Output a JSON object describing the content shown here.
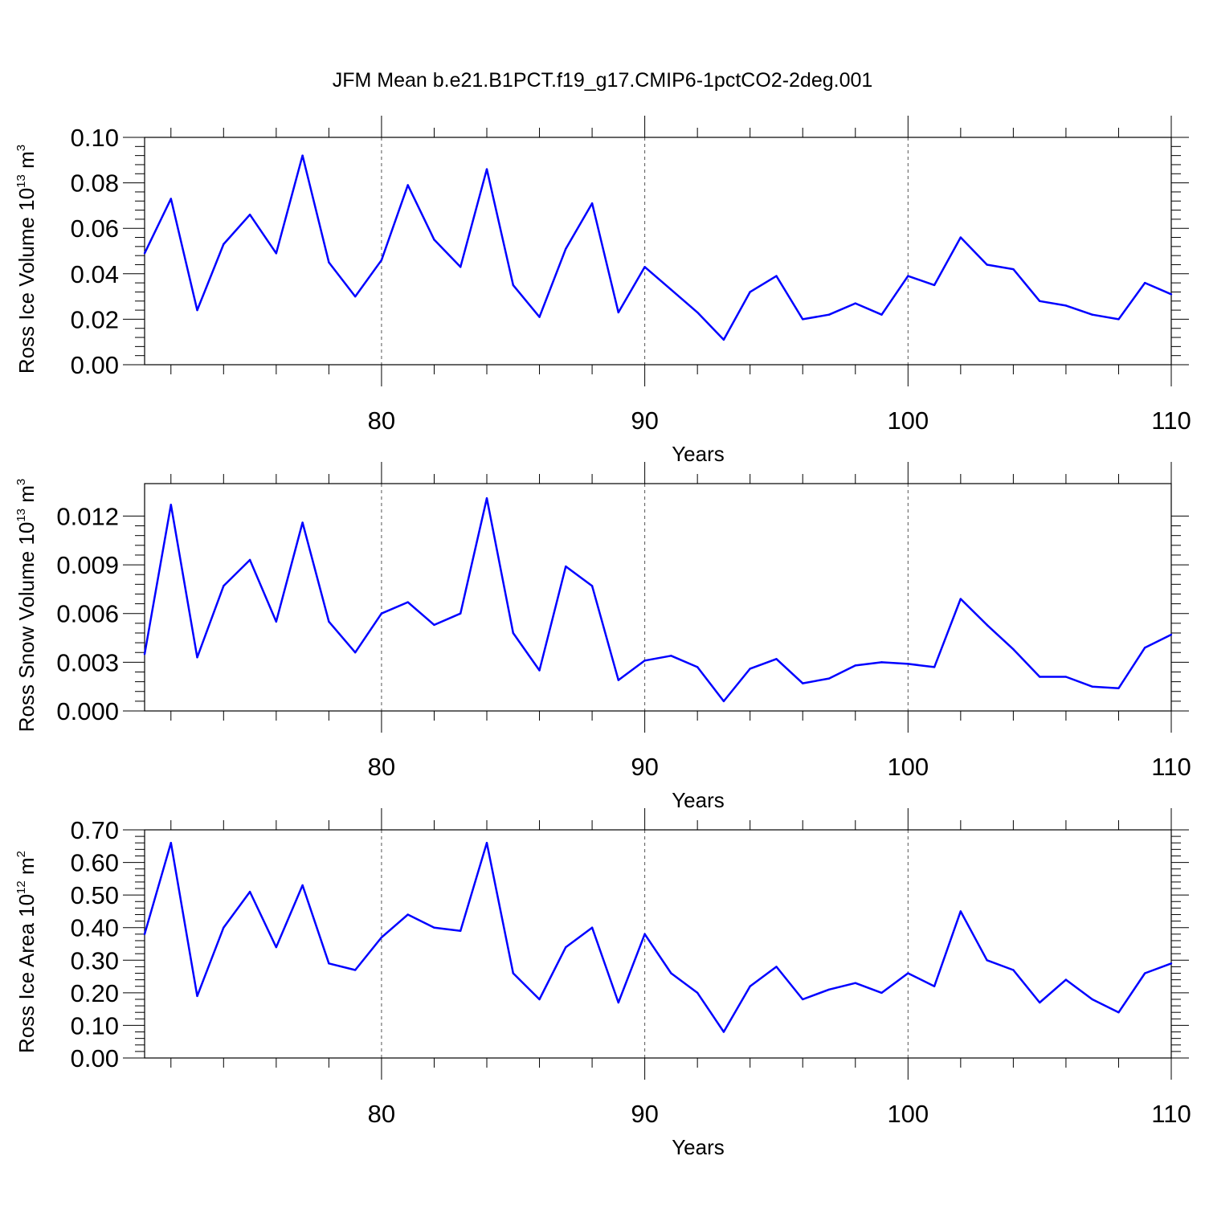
{
  "title": "JFM Mean b.e21.B1PCT.f19_g17.CMIP6-1pctCO2-2deg.001",
  "line_color": "#0000ff",
  "grid_style": "dashed",
  "chart_data": [
    {
      "type": "line",
      "xlabel": "Years",
      "ylabel_main": "Ross Ice Volume 10",
      "ylabel_sup": "13",
      "ylabel_unit": " m",
      "ylabel_unit_sup": "3",
      "xlim": [
        71,
        110
      ],
      "ylim": [
        0,
        0.1
      ],
      "x_ticks": [
        80,
        90,
        100,
        110
      ],
      "y_ticks": [
        0,
        0.02,
        0.04,
        0.06,
        0.08,
        0.1
      ],
      "y_tick_labels": [
        "0.00",
        "0.02",
        "0.04",
        "0.06",
        "0.08",
        "0.10"
      ],
      "grid_x": [
        80,
        90,
        100
      ],
      "x": [
        71,
        72,
        73,
        74,
        75,
        76,
        77,
        78,
        79,
        80,
        81,
        82,
        83,
        84,
        85,
        86,
        87,
        88,
        89,
        90,
        91,
        92,
        93,
        94,
        95,
        96,
        97,
        98,
        99,
        100,
        101,
        102,
        103,
        104,
        105,
        106,
        107,
        108,
        109,
        110
      ],
      "values": [
        0.049,
        0.073,
        0.024,
        0.053,
        0.066,
        0.049,
        0.092,
        0.045,
        0.03,
        0.046,
        0.079,
        0.055,
        0.043,
        0.086,
        0.035,
        0.021,
        0.051,
        0.071,
        0.023,
        0.043,
        0.033,
        0.023,
        0.011,
        0.032,
        0.039,
        0.02,
        0.022,
        0.027,
        0.022,
        0.039,
        0.035,
        0.056,
        0.044,
        0.042,
        0.028,
        0.026,
        0.022,
        0.02,
        0.036,
        0.031
      ]
    },
    {
      "type": "line",
      "xlabel": "Years",
      "ylabel_main": "Ross Snow Volume 10",
      "ylabel_sup": "13",
      "ylabel_unit": " m",
      "ylabel_unit_sup": "3",
      "xlim": [
        71,
        110
      ],
      "ylim": [
        0,
        0.014
      ],
      "x_ticks": [
        80,
        90,
        100,
        110
      ],
      "y_ticks": [
        0,
        0.003,
        0.006,
        0.009,
        0.012
      ],
      "y_tick_labels": [
        "0.000",
        "0.003",
        "0.006",
        "0.009",
        "0.012"
      ],
      "grid_x": [
        80,
        90,
        100
      ],
      "x": [
        71,
        72,
        73,
        74,
        75,
        76,
        77,
        78,
        79,
        80,
        81,
        82,
        83,
        84,
        85,
        86,
        87,
        88,
        89,
        90,
        91,
        92,
        93,
        94,
        95,
        96,
        97,
        98,
        99,
        100,
        101,
        102,
        103,
        104,
        105,
        106,
        107,
        108,
        109,
        110
      ],
      "values": [
        0.0035,
        0.0127,
        0.0033,
        0.0077,
        0.0093,
        0.0055,
        0.0116,
        0.0055,
        0.0036,
        0.006,
        0.0067,
        0.0053,
        0.006,
        0.0131,
        0.0048,
        0.0025,
        0.0089,
        0.0077,
        0.0019,
        0.0031,
        0.0034,
        0.0027,
        0.0006,
        0.0026,
        0.0032,
        0.0017,
        0.002,
        0.0028,
        0.003,
        0.0029,
        0.0027,
        0.0069,
        0.0053,
        0.0038,
        0.0021,
        0.0021,
        0.0015,
        0.0014,
        0.0039,
        0.0047
      ]
    },
    {
      "type": "line",
      "xlabel": "Years",
      "ylabel_main": "Ross Ice Area 10",
      "ylabel_sup": "12",
      "ylabel_unit": " m",
      "ylabel_unit_sup": "2",
      "xlim": [
        71,
        110
      ],
      "ylim": [
        0,
        0.7
      ],
      "x_ticks": [
        80,
        90,
        100,
        110
      ],
      "y_ticks": [
        0,
        0.1,
        0.2,
        0.3,
        0.4,
        0.5,
        0.6,
        0.7
      ],
      "y_tick_labels": [
        "0.00",
        "0.10",
        "0.20",
        "0.30",
        "0.40",
        "0.50",
        "0.60",
        "0.70"
      ],
      "grid_x": [
        80,
        90,
        100
      ],
      "x": [
        71,
        72,
        73,
        74,
        75,
        76,
        77,
        78,
        79,
        80,
        81,
        82,
        83,
        84,
        85,
        86,
        87,
        88,
        89,
        90,
        91,
        92,
        93,
        94,
        95,
        96,
        97,
        98,
        99,
        100,
        101,
        102,
        103,
        104,
        105,
        106,
        107,
        108,
        109,
        110
      ],
      "values": [
        0.38,
        0.66,
        0.19,
        0.4,
        0.51,
        0.34,
        0.53,
        0.29,
        0.27,
        0.37,
        0.44,
        0.4,
        0.39,
        0.66,
        0.26,
        0.18,
        0.34,
        0.4,
        0.17,
        0.38,
        0.26,
        0.2,
        0.08,
        0.22,
        0.28,
        0.18,
        0.21,
        0.23,
        0.2,
        0.26,
        0.22,
        0.45,
        0.3,
        0.27,
        0.17,
        0.24,
        0.18,
        0.14,
        0.26,
        0.29
      ]
    }
  ]
}
